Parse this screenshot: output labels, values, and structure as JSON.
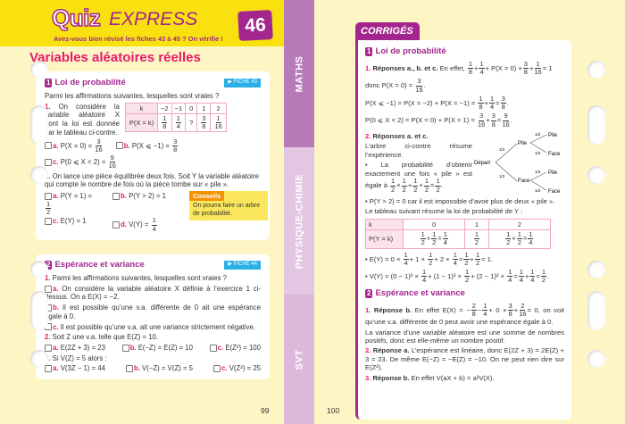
{
  "left": {
    "quiz": "Quiz",
    "express": "EXPRESS",
    "subtitle": "Avez-vous bien révisé les fiches 43 à 45 ? On vérifie !",
    "number": "46",
    "title": "Variables aléatoires réelles",
    "card1": {
      "num": "1",
      "title": "Loi de probabilité",
      "fiche": "▶ FICHE 43",
      "intro": [
        "Parmi les affirmations suivantes, lesquelles sont vraies ?"
      ],
      "q1": [
        {
          "p": "1. "
        },
        "On considère la variable aléatoire X dont la loi est donnée par le tableau ci-contre."
      ],
      "table": {
        "k_label": "k",
        "k": [
          "−2",
          "−1",
          "0",
          "1",
          "2"
        ],
        "p_label": "P(X = k)",
        "p": [
          [
            "1",
            "8"
          ],
          [
            "1",
            "4"
          ],
          [
            "?",
            ""
          ],
          [
            "3",
            "8"
          ],
          [
            "1",
            "16"
          ]
        ]
      },
      "q1a": [
        {
          "cb": "a."
        },
        "P(X = 0) = ",
        {
          "f": [
            "3",
            "16"
          ]
        }
      ],
      "q1b": [
        {
          "cb": "b."
        },
        "P(X ⩽ −1) = ",
        {
          "f": [
            "3",
            "8"
          ]
        }
      ],
      "q1c": [
        {
          "cb": "c."
        },
        "P(0 ⩽ X < 2) = ",
        {
          "f": [
            "9",
            "16"
          ]
        }
      ],
      "q2": [
        {
          "p": "2. "
        },
        "On lance une pièce équilibrée deux fois. Soit Y la variable aléatoire qui compte le nombre de fois où la pièce tombe sur « pile »."
      ],
      "q2a": [
        {
          "cb": "a."
        },
        "P(Y = 1) = ",
        {
          "f": [
            "1",
            "2"
          ]
        }
      ],
      "q2b": [
        {
          "cb": "b."
        },
        "P(Y > 2) = 1"
      ],
      "q2c": [
        {
          "cb": "c."
        },
        "E(Y) = 1"
      ],
      "q2d": [
        {
          "cb": "d."
        },
        "V(Y) = ",
        {
          "f": [
            "1",
            "4"
          ]
        }
      ],
      "conseils_label": "Conseils",
      "conseils_text": "On pourra faire un arbre de probabilité."
    },
    "card2": {
      "num": "2",
      "title": "Espérance et variance",
      "fiche": "▶ FICHE 44",
      "l1": [
        {
          "p": "1. "
        },
        "Parmi les affirmations suivantes, lesquelles sont vraies ?"
      ],
      "l2": [
        {
          "cb": "a."
        },
        "On considère la variable aléatoire X définie à l’exercice 1 ci-dessus. On a E(X) = −2."
      ],
      "l3": [
        {
          "cb": "b."
        },
        "Il est possible qu’une v.a. différente de 0 ait une espérance égale à 0."
      ],
      "l4": [
        {
          "cb": "c."
        },
        "Il est possible qu’une v.a. ait une variance strictement négative."
      ],
      "l5": [
        {
          "p": "2. "
        },
        "Soit Z une v.a. telle que E(Z) = 10."
      ],
      "o5a": [
        {
          "cb": "a."
        },
        "E(2Z + 3) = 23"
      ],
      "o5b": [
        {
          "cb": "b."
        },
        "E(−Z) = E(Z) = 10"
      ],
      "o5c": [
        {
          "cb": "c."
        },
        "E(Z²) = 100"
      ],
      "l6": [
        {
          "p": "3. "
        },
        "Si V(Z) = 5 alors :"
      ],
      "o6a": [
        {
          "cb": "a."
        },
        "V(3Z − 1) = 44"
      ],
      "o6b": [
        {
          "cb": "b."
        },
        "V(−Z) = V(Z) = 5"
      ],
      "o6c": [
        {
          "cb": "c."
        },
        "V(Z²) = 25"
      ]
    },
    "page": "99"
  },
  "tabs": {
    "maths": "MATHS",
    "physique": "PHYSIQUE-CHIMIE",
    "svt": "SVT"
  },
  "right": {
    "header": "CORRIGÉS",
    "s1": {
      "num": "1",
      "title": "Loi de probabilité",
      "r1": [
        {
          "p": "1. "
        },
        {
          "b": "Réponses a., b. et c. "
        },
        "En effet, ",
        {
          "f": [
            "1",
            "8"
          ]
        },
        "+",
        {
          "f": [
            "1",
            "4"
          ]
        },
        "+ P(X = 0) +",
        {
          "f": [
            "3",
            "8"
          ]
        },
        "+",
        {
          "f": [
            "1",
            "16"
          ]
        },
        "= 1"
      ],
      "r2": [
        "donc P(X = 0) = ",
        {
          "f": [
            "3",
            "16"
          ]
        },
        "."
      ],
      "r3": [
        "P(X ⩽ −1) = P(X = −2) + P(X = −1) = ",
        {
          "f": [
            "1",
            "8"
          ]
        },
        "+",
        {
          "f": [
            "1",
            "4"
          ]
        },
        "=",
        {
          "f": [
            "3",
            "8"
          ]
        },
        "."
      ],
      "r4": [
        "P(0 ⩽ X < 2) = P(X = 0) + P(X = 1) = ",
        {
          "f": [
            "3",
            "16"
          ]
        },
        "+",
        {
          "f": [
            "3",
            "8"
          ]
        },
        "=",
        {
          "f": [
            "9",
            "16"
          ]
        },
        "."
      ],
      "r5": [
        {
          "p": "2. "
        },
        {
          "b": "Réponses a. et c."
        }
      ],
      "r6": [
        "L’arbre ci-contre résume l’expérience."
      ],
      "r7": [
        "• La probabilité d’obtenir exactement une fois « pile » est égale à ",
        {
          "f": [
            "1",
            "2"
          ]
        },
        "×",
        {
          "f": [
            "1",
            "2"
          ]
        },
        "+",
        {
          "f": [
            "1",
            "2"
          ]
        },
        "×",
        {
          "f": [
            "1",
            "2"
          ]
        },
        "=",
        {
          "f": [
            "1",
            "2"
          ]
        },
        "."
      ],
      "r8": [
        "• P(Y > 2) = 0 car il est impossible d’avoir plus de deux « pile »."
      ],
      "r9": [
        "Le tableau suivant résume la loi de probabilité de Y :"
      ],
      "tree": {
        "start": "Départ",
        "pile": "Pile",
        "face": "Face",
        "prob": "1/2"
      },
      "table": {
        "k_label": "k",
        "k": [
          "0",
          "1",
          "2"
        ],
        "p_label": "P(Y = k)",
        "p": [
          [
            {
              "f": [
                "1",
                "2"
              ]
            },
            "×",
            {
              "f": [
                "1",
                "2"
              ]
            },
            "=",
            {
              "f": [
                "1",
                "4"
              ]
            }
          ],
          [
            {
              "f": [
                "1",
                "2"
              ]
            }
          ],
          [
            {
              "f": [
                "1",
                "2"
              ]
            },
            "×",
            {
              "f": [
                "1",
                "2"
              ]
            },
            "=",
            {
              "f": [
                "1",
                "4"
              ]
            }
          ]
        ]
      },
      "r10": [
        "• E(Y) = 0 × ",
        {
          "f": [
            "1",
            "4"
          ]
        },
        "+ 1 × ",
        {
          "f": [
            "1",
            "2"
          ]
        },
        "+ 2 × ",
        {
          "f": [
            "1",
            "4"
          ]
        },
        "=",
        {
          "f": [
            "1",
            "2"
          ]
        },
        "+",
        {
          "f": [
            "1",
            "2"
          ]
        },
        "= 1."
      ],
      "r11": [
        "• V(Y) = (0 − 1)² × ",
        {
          "f": [
            "1",
            "4"
          ]
        },
        "+ (1 − 1)² × ",
        {
          "f": [
            "1",
            "2"
          ]
        },
        "+ (2 − 1)² × ",
        {
          "f": [
            "1",
            "4"
          ]
        },
        "=",
        {
          "f": [
            "1",
            "4"
          ]
        },
        "+",
        {
          "f": [
            "1",
            "4"
          ]
        },
        "=",
        {
          "f": [
            "1",
            "2"
          ]
        },
        "."
      ]
    },
    "s2": {
      "num": "2",
      "title": "Espérance et variance",
      "r1": [
        {
          "p": "1. "
        },
        {
          "b": "Réponse b. "
        },
        "En effet E(X) = −",
        {
          "f": [
            "2",
            "8"
          ]
        },
        "−",
        {
          "f": [
            "1",
            "4"
          ]
        },
        "+ 0 +",
        {
          "f": [
            "3",
            "8"
          ]
        },
        "+",
        {
          "f": [
            "2",
            "16"
          ]
        },
        "= 0, on voit qu’une v.a. différente de 0 peut avoir une espérance égale à 0."
      ],
      "r2": [
        "La variance d’une variable aléatoire est une somme de nombres positifs, donc est elle-même un nombre positif."
      ],
      "r3": [
        {
          "p": "2. "
        },
        {
          "b": "Réponse a. "
        },
        "L’espérance est linéaire, donc E(2Z + 3) = 2E(Z) + 3 = 23. De même E(−Z) = −E(Z) = −10. On ne peut rien dire sur E(Z²)."
      ],
      "r4": [
        {
          "p": "3. "
        },
        {
          "b": "Réponse b. "
        },
        "En effet V(aX + b) = a²V(X)."
      ]
    },
    "page": "100"
  },
  "colors": {
    "purple": "#a3268e",
    "pink": "#e6196e",
    "cyan": "#2ab0e6",
    "yellow": "#f8e10f",
    "orange": "#f39200"
  }
}
